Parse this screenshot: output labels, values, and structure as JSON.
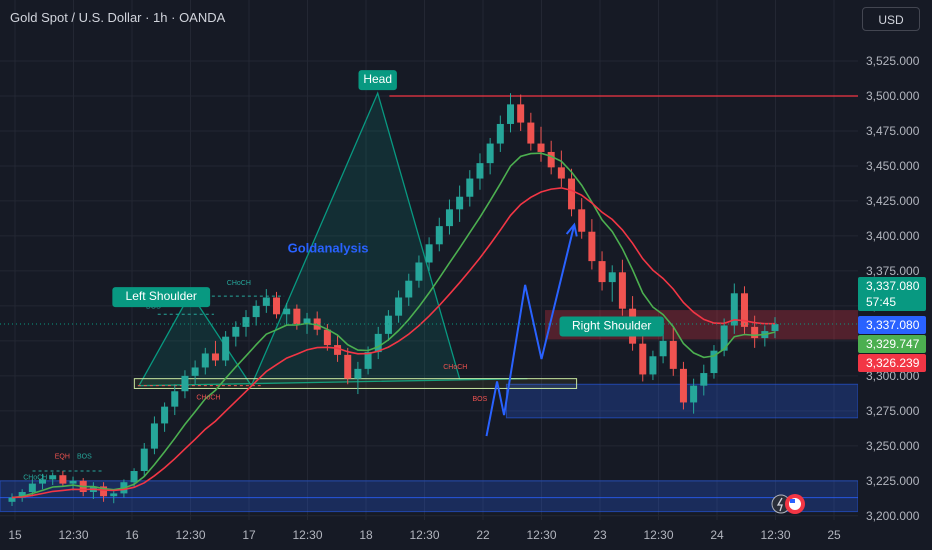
{
  "header": {
    "title": "Gold Spot / U.S. Dollar · 1h · OANDA",
    "currency": "USD"
  },
  "colors": {
    "background": "#161a25",
    "up": "#26a69a",
    "down": "#ef5350",
    "ema_fast": "#4caf50",
    "ema_slow": "#f23645",
    "accent_green": "#089981",
    "arrow_blue": "#2962ff",
    "resistance": "#f23645"
  },
  "chart_data": {
    "type": "candlestick",
    "x_ticks": [
      "15",
      "12:30",
      "16",
      "12:30",
      "17",
      "12:30",
      "18",
      "12:30",
      "22",
      "12:30",
      "23",
      "12:30",
      "24",
      "12:30",
      "25"
    ],
    "y_ticks": [
      3200,
      3225,
      3250,
      3275,
      3300,
      3325,
      3350,
      3375,
      3400,
      3425,
      3450,
      3475,
      3500,
      3525
    ],
    "ylim": [
      3197,
      3540
    ],
    "price_labels": [
      {
        "kind": "last",
        "value": "3,337.080",
        "countdown": "57:45",
        "color": "#089981"
      },
      {
        "kind": "bid",
        "value": "3,337.080",
        "color": "#2962ff"
      },
      {
        "kind": "ema_fast",
        "value": "3,329.747",
        "color": "#4caf50"
      },
      {
        "kind": "ema_slow",
        "value": "3,326.239",
        "color": "#f23645"
      }
    ],
    "annotations": [
      {
        "text": "Left Shoulder",
        "x": 12.5,
        "y": 3357
      },
      {
        "text": "Head",
        "x": 31.0,
        "y": 3512
      },
      {
        "text": "Right Shoulder",
        "x": 51.0,
        "y": 3336
      }
    ],
    "watermark": "Goldanalysis",
    "small_labels": [
      {
        "text": "CHoCH",
        "x": 0.7,
        "y": 3226,
        "color": "#26a69a"
      },
      {
        "text": "EQH",
        "x": 3.4,
        "y": 3241,
        "color": "#ef5350"
      },
      {
        "text": "BOS",
        "x": 5.3,
        "y": 3241,
        "color": "#26a69a"
      },
      {
        "text": "BOS",
        "x": 11.2,
        "y": 3348,
        "color": "#26a69a"
      },
      {
        "text": "CHoCH",
        "x": 18.1,
        "y": 3365,
        "color": "#26a69a"
      },
      {
        "text": "CHoCH",
        "x": 15.5,
        "y": 3283,
        "color": "#ef5350"
      },
      {
        "text": "CHoCH",
        "x": 36.6,
        "y": 3305,
        "color": "#ef5350"
      },
      {
        "text": "BOS",
        "x": 39.1,
        "y": 3282,
        "color": "#ef5350"
      }
    ],
    "resistance": {
      "value": 3500
    },
    "neckline": {
      "low": 3291,
      "high": 3298
    },
    "zones": [
      {
        "low": 3270,
        "high": 3294,
        "color": "blue"
      },
      {
        "low": 3203,
        "high": 3225,
        "color": "blue"
      },
      {
        "low": 3326,
        "high": 3347,
        "color": "red"
      }
    ],
    "pattern_vertices": [
      [
        10.6,
        3293
      ],
      [
        15.0,
        3359
      ],
      [
        20.2,
        3293
      ],
      [
        31.0,
        3502
      ],
      [
        38.0,
        3298
      ],
      [
        43.8,
        3298
      ]
    ],
    "projection_path": [
      [
        40.3,
        3257
      ],
      [
        41.2,
        3296
      ],
      [
        41.8,
        3272
      ],
      [
        43.6,
        3365
      ],
      [
        45.0,
        3312
      ],
      [
        47.8,
        3408
      ]
    ],
    "ohlc_hourly": [
      {
        "o": 3210,
        "h": 3216,
        "l": 3207,
        "c": 3213
      },
      {
        "o": 3213,
        "h": 3219,
        "l": 3210,
        "c": 3217
      },
      {
        "o": 3217,
        "h": 3226,
        "l": 3214,
        "c": 3223
      },
      {
        "o": 3223,
        "h": 3230,
        "l": 3219,
        "c": 3226
      },
      {
        "o": 3226,
        "h": 3231,
        "l": 3222,
        "c": 3229
      },
      {
        "o": 3229,
        "h": 3232,
        "l": 3221,
        "c": 3223
      },
      {
        "o": 3223,
        "h": 3228,
        "l": 3218,
        "c": 3225
      },
      {
        "o": 3225,
        "h": 3227,
        "l": 3214,
        "c": 3217
      },
      {
        "o": 3217,
        "h": 3224,
        "l": 3212,
        "c": 3221
      },
      {
        "o": 3221,
        "h": 3224,
        "l": 3210,
        "c": 3214
      },
      {
        "o": 3214,
        "h": 3218,
        "l": 3209,
        "c": 3216
      },
      {
        "o": 3216,
        "h": 3226,
        "l": 3213,
        "c": 3224
      },
      {
        "o": 3224,
        "h": 3234,
        "l": 3221,
        "c": 3232
      },
      {
        "o": 3232,
        "h": 3252,
        "l": 3228,
        "c": 3248
      },
      {
        "o": 3248,
        "h": 3271,
        "l": 3244,
        "c": 3266
      },
      {
        "o": 3266,
        "h": 3281,
        "l": 3260,
        "c": 3278
      },
      {
        "o": 3278,
        "h": 3294,
        "l": 3272,
        "c": 3289
      },
      {
        "o": 3289,
        "h": 3304,
        "l": 3284,
        "c": 3300
      },
      {
        "o": 3300,
        "h": 3311,
        "l": 3294,
        "c": 3306
      },
      {
        "o": 3306,
        "h": 3320,
        "l": 3301,
        "c": 3316
      },
      {
        "o": 3316,
        "h": 3325,
        "l": 3307,
        "c": 3311
      },
      {
        "o": 3311,
        "h": 3332,
        "l": 3307,
        "c": 3328
      },
      {
        "o": 3328,
        "h": 3339,
        "l": 3321,
        "c": 3335
      },
      {
        "o": 3335,
        "h": 3347,
        "l": 3328,
        "c": 3342
      },
      {
        "o": 3342,
        "h": 3354,
        "l": 3336,
        "c": 3350
      },
      {
        "o": 3350,
        "h": 3362,
        "l": 3345,
        "c": 3356
      },
      {
        "o": 3356,
        "h": 3360,
        "l": 3341,
        "c": 3344
      },
      {
        "o": 3344,
        "h": 3352,
        "l": 3336,
        "c": 3348
      },
      {
        "o": 3348,
        "h": 3351,
        "l": 3333,
        "c": 3337
      },
      {
        "o": 3337,
        "h": 3345,
        "l": 3330,
        "c": 3341
      },
      {
        "o": 3341,
        "h": 3346,
        "l": 3329,
        "c": 3333
      },
      {
        "o": 3333,
        "h": 3337,
        "l": 3318,
        "c": 3322
      },
      {
        "o": 3322,
        "h": 3329,
        "l": 3310,
        "c": 3315
      },
      {
        "o": 3315,
        "h": 3320,
        "l": 3294,
        "c": 3298
      },
      {
        "o": 3298,
        "h": 3310,
        "l": 3287,
        "c": 3305
      },
      {
        "o": 3305,
        "h": 3321,
        "l": 3301,
        "c": 3317
      },
      {
        "o": 3317,
        "h": 3335,
        "l": 3312,
        "c": 3330
      },
      {
        "o": 3330,
        "h": 3347,
        "l": 3325,
        "c": 3343
      },
      {
        "o": 3343,
        "h": 3361,
        "l": 3338,
        "c": 3356
      },
      {
        "o": 3356,
        "h": 3373,
        "l": 3350,
        "c": 3368
      },
      {
        "o": 3368,
        "h": 3386,
        "l": 3363,
        "c": 3381
      },
      {
        "o": 3381,
        "h": 3399,
        "l": 3375,
        "c": 3394
      },
      {
        "o": 3394,
        "h": 3413,
        "l": 3389,
        "c": 3407
      },
      {
        "o": 3407,
        "h": 3426,
        "l": 3401,
        "c": 3419
      },
      {
        "o": 3419,
        "h": 3436,
        "l": 3410,
        "c": 3428
      },
      {
        "o": 3428,
        "h": 3447,
        "l": 3421,
        "c": 3441
      },
      {
        "o": 3441,
        "h": 3459,
        "l": 3433,
        "c": 3452
      },
      {
        "o": 3452,
        "h": 3470,
        "l": 3444,
        "c": 3466
      },
      {
        "o": 3466,
        "h": 3486,
        "l": 3460,
        "c": 3480
      },
      {
        "o": 3480,
        "h": 3502,
        "l": 3474,
        "c": 3494
      },
      {
        "o": 3494,
        "h": 3501,
        "l": 3475,
        "c": 3481
      },
      {
        "o": 3481,
        "h": 3488,
        "l": 3461,
        "c": 3466
      },
      {
        "o": 3466,
        "h": 3478,
        "l": 3453,
        "c": 3460
      },
      {
        "o": 3460,
        "h": 3468,
        "l": 3444,
        "c": 3449
      },
      {
        "o": 3449,
        "h": 3461,
        "l": 3435,
        "c": 3441
      },
      {
        "o": 3441,
        "h": 3448,
        "l": 3414,
        "c": 3419
      },
      {
        "o": 3419,
        "h": 3427,
        "l": 3398,
        "c": 3403
      },
      {
        "o": 3403,
        "h": 3412,
        "l": 3376,
        "c": 3382
      },
      {
        "o": 3382,
        "h": 3389,
        "l": 3361,
        "c": 3367
      },
      {
        "o": 3367,
        "h": 3379,
        "l": 3353,
        "c": 3374
      },
      {
        "o": 3374,
        "h": 3383,
        "l": 3343,
        "c": 3348
      },
      {
        "o": 3348,
        "h": 3357,
        "l": 3318,
        "c": 3323
      },
      {
        "o": 3323,
        "h": 3331,
        "l": 3296,
        "c": 3301
      },
      {
        "o": 3301,
        "h": 3318,
        "l": 3297,
        "c": 3314
      },
      {
        "o": 3314,
        "h": 3330,
        "l": 3309,
        "c": 3325
      },
      {
        "o": 3325,
        "h": 3335,
        "l": 3300,
        "c": 3305
      },
      {
        "o": 3305,
        "h": 3310,
        "l": 3276,
        "c": 3281
      },
      {
        "o": 3281,
        "h": 3298,
        "l": 3273,
        "c": 3293
      },
      {
        "o": 3293,
        "h": 3308,
        "l": 3286,
        "c": 3302
      },
      {
        "o": 3302,
        "h": 3322,
        "l": 3298,
        "c": 3318
      },
      {
        "o": 3318,
        "h": 3341,
        "l": 3314,
        "c": 3336
      },
      {
        "o": 3336,
        "h": 3366,
        "l": 3330,
        "c": 3359
      },
      {
        "o": 3359,
        "h": 3364,
        "l": 3330,
        "c": 3335
      },
      {
        "o": 3335,
        "h": 3343,
        "l": 3320,
        "c": 3327
      },
      {
        "o": 3327,
        "h": 3336,
        "l": 3321,
        "c": 3332
      },
      {
        "o": 3332,
        "h": 3342,
        "l": 3327,
        "c": 3337
      }
    ]
  }
}
